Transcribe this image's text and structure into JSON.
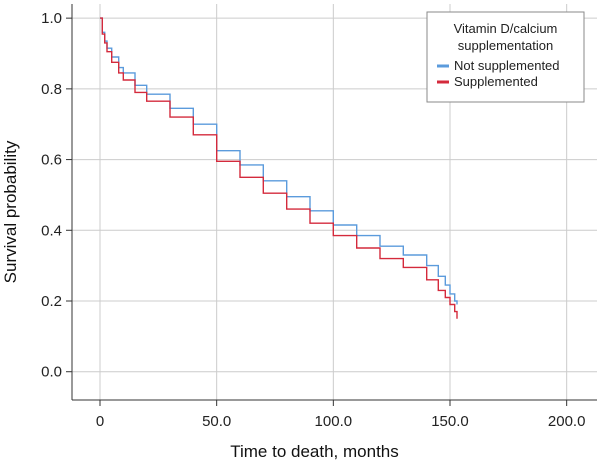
{
  "chart_data": {
    "type": "line",
    "title": "",
    "xlabel": "Time to death, months",
    "ylabel": "Survival probability",
    "xlim": [
      -12,
      213
    ],
    "ylim": [
      -0.08,
      1.04
    ],
    "x_ticks": [
      "0",
      "50.0",
      "100.0",
      "150.0",
      "200.0"
    ],
    "x_tick_values": [
      0,
      50,
      100,
      150,
      200
    ],
    "y_ticks": [
      "0.0",
      "0.2",
      "0.4",
      "0.6",
      "0.8",
      "1.0"
    ],
    "y_tick_values": [
      0,
      0.2,
      0.4,
      0.6,
      0.8,
      1.0
    ],
    "grid": true,
    "legend": {
      "title_line1": "Vitamin D/calcium",
      "title_line2": "supplementation",
      "placement": "top-right"
    },
    "series": [
      {
        "name": "Not supplemented",
        "color": "#5b9bdc",
        "x": [
          0,
          1,
          2,
          3,
          5,
          8,
          10,
          15,
          20,
          30,
          40,
          50,
          60,
          70,
          80,
          90,
          100,
          110,
          120,
          130,
          140,
          145,
          148,
          150,
          152,
          153
        ],
        "y": [
          1.0,
          0.96,
          0.935,
          0.915,
          0.89,
          0.86,
          0.845,
          0.81,
          0.785,
          0.745,
          0.7,
          0.625,
          0.585,
          0.54,
          0.495,
          0.455,
          0.415,
          0.385,
          0.355,
          0.33,
          0.3,
          0.27,
          0.245,
          0.22,
          0.2,
          0.19
        ]
      },
      {
        "name": "Supplemented",
        "color": "#d42a3c",
        "x": [
          0,
          1,
          2,
          3,
          5,
          8,
          10,
          15,
          20,
          30,
          40,
          50,
          60,
          70,
          80,
          90,
          100,
          110,
          120,
          130,
          140,
          145,
          148,
          150,
          152,
          153
        ],
        "y": [
          1.0,
          0.955,
          0.93,
          0.905,
          0.875,
          0.845,
          0.825,
          0.79,
          0.765,
          0.72,
          0.67,
          0.595,
          0.55,
          0.505,
          0.46,
          0.42,
          0.385,
          0.35,
          0.32,
          0.295,
          0.26,
          0.23,
          0.21,
          0.19,
          0.17,
          0.15
        ]
      }
    ]
  }
}
